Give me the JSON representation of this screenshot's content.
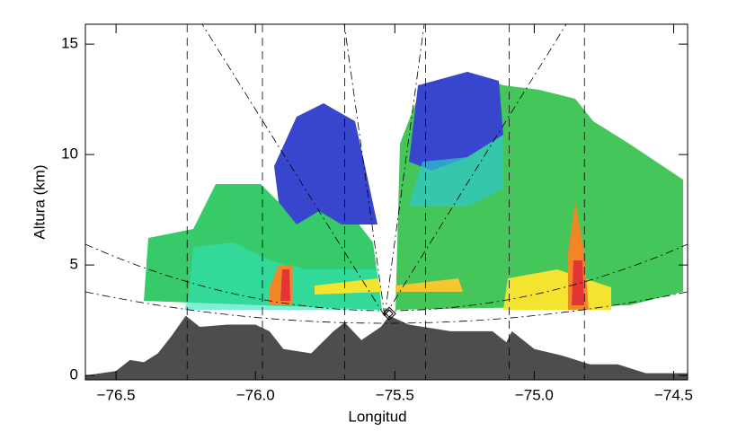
{
  "chart_data": {
    "type": "area",
    "xlabel": "Longitud",
    "ylabel": "Altura (km)",
    "xlim": [
      -76.61,
      -74.45
    ],
    "ylim": [
      -0.2,
      15.9
    ],
    "xticks": [
      {
        "value": -76.5,
        "label": "−76.5"
      },
      {
        "value": -76.0,
        "label": "−76.0"
      },
      {
        "value": -75.5,
        "label": "−75.5"
      },
      {
        "value": -75.0,
        "label": "−75.0"
      },
      {
        "value": -74.5,
        "label": "−74.5"
      }
    ],
    "yticks": [
      0,
      5,
      10,
      15
    ],
    "series": [
      {
        "color": "#4d4d4d",
        "x": [
          -76.61,
          -76.5,
          -76.45,
          -76.4,
          -76.35,
          -76.3,
          -76.25,
          -76.2,
          -76.1,
          -76.0,
          -75.95,
          -75.9,
          -75.8,
          -75.72,
          -75.68,
          -75.62,
          -75.55,
          -75.52,
          -75.45,
          -75.3,
          -75.15,
          -75.1,
          -75.08,
          -75.0,
          -74.9,
          -74.8,
          -74.7,
          -74.6,
          -74.45
        ],
        "y": [
          0,
          0.2,
          0.7,
          0.6,
          1.0,
          1.8,
          2.7,
          2.2,
          2.3,
          2.3,
          2.0,
          1.2,
          1.0,
          2.0,
          2.4,
          1.6,
          2.2,
          2.7,
          2.3,
          2.0,
          2.0,
          1.5,
          2.0,
          1.2,
          0.9,
          0.5,
          0.5,
          0.1,
          0.1
        ]
      }
    ],
    "radar": {
      "x": -75.52,
      "y": 2.8
    },
    "reference_longitudes": [
      -76.245,
      -75.975,
      -75.68,
      -75.39,
      -75.09,
      -74.82
    ]
  }
}
